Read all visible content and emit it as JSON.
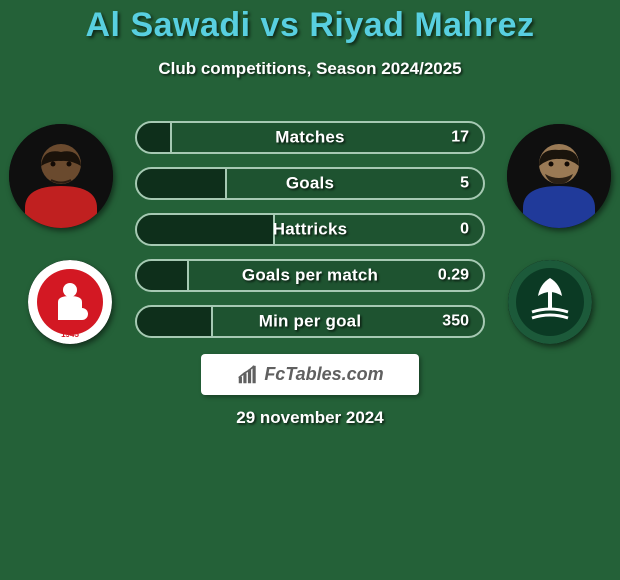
{
  "page": {
    "background_color": "#246138",
    "title_color": "#58cfe0",
    "text_color": "#ffffff",
    "shadow_color": "rgba(0,0,0,0.7)"
  },
  "header": {
    "title": "Al Sawadi vs Riyad Mahrez",
    "subtitle": "Club competitions, Season 2024/2025"
  },
  "players": {
    "p1": {
      "name": "Al Sawadi",
      "avatar_bg": "#0f0f0f",
      "skin": "#6a4a2e",
      "jersey": "#c02020",
      "club_badge_bg": "#ffffff",
      "club_badge_main": "#d31823"
    },
    "p2": {
      "name": "Riyad Mahrez",
      "avatar_bg": "#0f0f0f",
      "skin": "#9a7a55",
      "jersey": "#203a9a",
      "club_badge_bg": "#1c5a3a",
      "club_badge_main": "#ffffff"
    }
  },
  "stats": {
    "pill_border": "#a6c9b3",
    "pill_track_bg": "rgba(0,0,0,0.14)",
    "pill_fill_bg": "#0e2f1b",
    "rows": [
      {
        "label": "Matches",
        "left_pct": 10,
        "right_val": "17"
      },
      {
        "label": "Goals",
        "left_pct": 26,
        "right_val": "5"
      },
      {
        "label": "Hattricks",
        "left_pct": 40,
        "right_val": "0"
      },
      {
        "label": "Goals per match",
        "left_pct": 15,
        "right_val": "0.29"
      },
      {
        "label": "Min per goal",
        "left_pct": 22,
        "right_val": "350"
      }
    ]
  },
  "brand": {
    "text": "FcTables.com",
    "box_bg": "#ffffff",
    "text_color": "#606060",
    "icon_color": "#606060"
  },
  "footer": {
    "date": "29 november 2024"
  }
}
